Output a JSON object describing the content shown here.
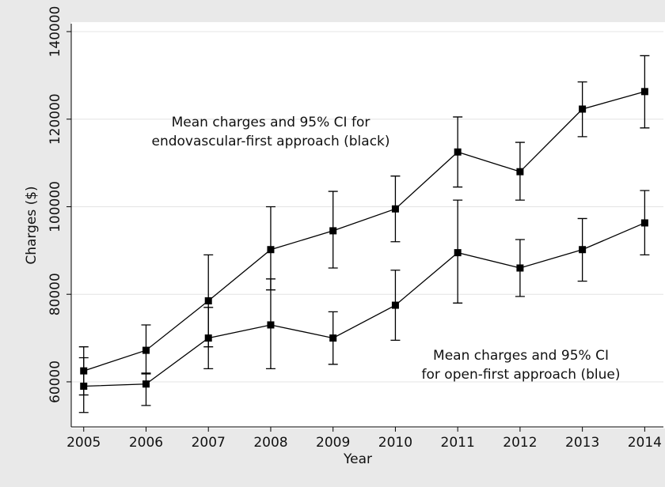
{
  "chart_data": {
    "type": "line",
    "x": [
      2005,
      2006,
      2007,
      2008,
      2009,
      2010,
      2011,
      2012,
      2013,
      2014
    ],
    "xlim": [
      2004.8,
      2014.3
    ],
    "xticks": [
      2005,
      2006,
      2007,
      2008,
      2009,
      2010,
      2011,
      2012,
      2013,
      2014
    ],
    "ylim": [
      49700,
      141800
    ],
    "yticks": [
      60000,
      80000,
      100000,
      120000,
      140000
    ],
    "x_label": "Year",
    "y_label": "Charges ($)",
    "grid": true,
    "series": [
      {
        "color": "#000000",
        "values": [
          62500,
          67200,
          78500,
          90200,
          94500,
          99500,
          112500,
          108000,
          122300,
          126300
        ],
        "ci_low": [
          57000,
          62000,
          68000,
          81000,
          86000,
          92000,
          104500,
          101500,
          116000,
          118000
        ],
        "ci_high": [
          68000,
          73000,
          89000,
          100000,
          103500,
          107000,
          120500,
          114700,
          128500,
          134500
        ]
      },
      {
        "color": "#000000",
        "values": [
          59000,
          59500,
          70000,
          73000,
          70000,
          77500,
          89500,
          86000,
          90200,
          96300
        ],
        "ci_low": [
          53000,
          54600,
          63000,
          63000,
          64000,
          69500,
          78000,
          79500,
          83000,
          89000
        ],
        "ci_high": [
          65500,
          61800,
          77000,
          83500,
          76000,
          85500,
          101500,
          92500,
          97300,
          103700
        ]
      }
    ],
    "annotations": [
      {
        "lines": [
          "Mean charges and 95% CI for",
          "endovascular-first approach (black)"
        ]
      },
      {
        "lines": [
          "Mean charges and 95% CI",
          "for open-first approach (blue)"
        ]
      }
    ]
  }
}
